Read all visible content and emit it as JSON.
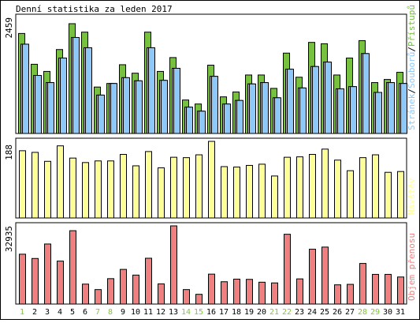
{
  "title": "Denní statistika za leden 2017",
  "colors": {
    "pages": "#84c341",
    "files": "#8ec8f8",
    "hits": "#78c040",
    "visits": "#ffff99",
    "volume": "#f08080",
    "weekend_label": "#84c341",
    "weekday_label": "#000000"
  },
  "chart_data": [
    {
      "type": "bar",
      "title": "Denní statistika za leden 2017",
      "categories": [
        "1",
        "2",
        "3",
        "4",
        "5",
        "6",
        "7",
        "8",
        "9",
        "10",
        "11",
        "12",
        "13",
        "14",
        "15",
        "16",
        "17",
        "18",
        "19",
        "20",
        "21",
        "22",
        "23",
        "24",
        "25",
        "26",
        "27",
        "28",
        "29",
        "30",
        "31"
      ],
      "weekend_days": [
        "1",
        "7",
        "8",
        "14",
        "15",
        "21",
        "22",
        "28",
        "29"
      ],
      "ymax_label": "2459",
      "legend": {
        "pages": "Stránek",
        "files": "Souborů",
        "hits": "Přístupů",
        "separator": "/"
      },
      "series": [
        {
          "name": "Přístupů",
          "values": [
            2240,
            1550,
            1390,
            1880,
            2459,
            2270,
            1040,
            1120,
            1540,
            1350,
            2270,
            1390,
            1700,
            750,
            660,
            1530,
            820,
            930,
            1310,
            1310,
            1010,
            1800,
            1260,
            2040,
            2010,
            1310,
            1690,
            2080,
            1140,
            1210,
            1370
          ]
        },
        {
          "name": "Souborů",
          "values": [
            2000,
            1300,
            1140,
            1690,
            2150,
            1920,
            860,
            1120,
            1250,
            1180,
            1920,
            1190,
            1460,
            590,
            500,
            1280,
            660,
            740,
            1110,
            1140,
            800,
            1440,
            1020,
            1500,
            1600,
            1000,
            1050,
            1790,
            920,
            1140,
            1120
          ]
        },
        {
          "name": "Stránek",
          "values": [
            2000,
            1300,
            1140,
            1690,
            2150,
            1920,
            860,
            1120,
            1250,
            1180,
            1920,
            1190,
            1460,
            590,
            500,
            1280,
            660,
            740,
            1110,
            1140,
            800,
            1440,
            1020,
            1500,
            1600,
            1000,
            1050,
            1790,
            920,
            1140,
            1120
          ]
        }
      ]
    },
    {
      "type": "bar",
      "ymax_label": "188",
      "legend_label": "Návštěv",
      "categories_ref": "same",
      "values": [
        165,
        161,
        139,
        177,
        147,
        136,
        140,
        140,
        156,
        128,
        163,
        123,
        149,
        148,
        155,
        188,
        126,
        125,
        129,
        132,
        103,
        149,
        150,
        156,
        169,
        142,
        116,
        148,
        155,
        112,
        114
      ]
    },
    {
      "type": "bar",
      "ymax_label": "32935",
      "legend_label": "Objem přenosu",
      "categories_ref": "same",
      "values": [
        21000,
        19200,
        25300,
        18100,
        30900,
        8400,
        6100,
        10700,
        14600,
        12200,
        19300,
        8500,
        32935,
        6100,
        4100,
        12600,
        9400,
        10500,
        10400,
        9200,
        8900,
        29400,
        10600,
        23100,
        24000,
        8100,
        8300,
        17100,
        12500,
        12500,
        11400
      ]
    }
  ]
}
